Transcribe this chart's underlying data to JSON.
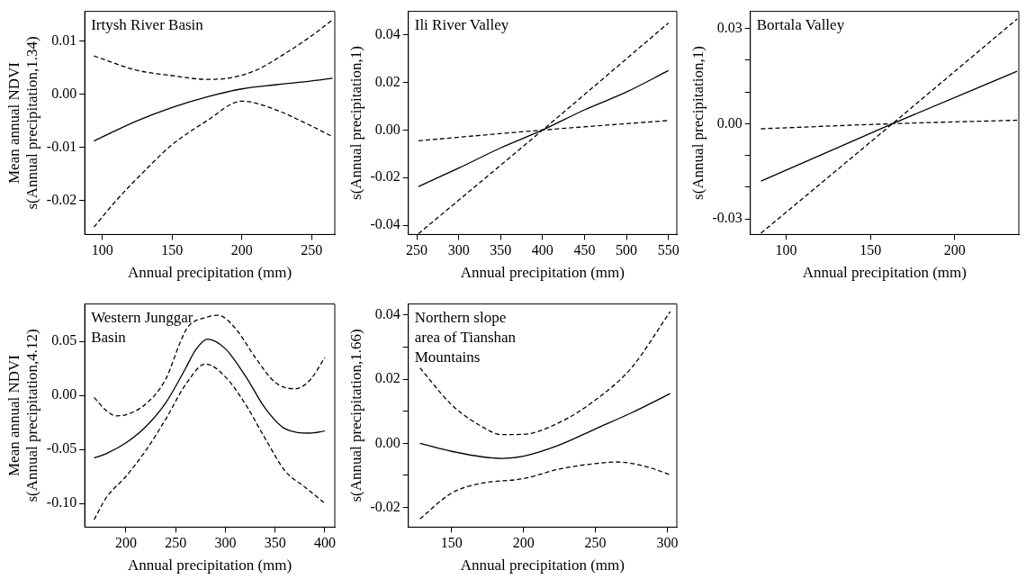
{
  "chart_data": [
    {
      "type": "line",
      "xlabel": "Annual precipitation (mm)",
      "ylabel": "Mean annual NDVI\ns(Annual precipitation,1.34)",
      "annotations": [
        "Irtysh River Basin"
      ],
      "grid": false,
      "legend": false,
      "marker": "none",
      "xlim": [
        87.4,
        266.6
      ],
      "xticks": [
        100,
        150,
        200,
        250
      ],
      "ylim": [
        -0.0264,
        0.0156
      ],
      "yticks": [
        -0.02,
        -0.01,
        {
          "value": 0,
          "label": "0.00"
        },
        0.01
      ],
      "series": [
        {
          "color": "#000000",
          "line_style": "solid",
          "x": [
            94,
            125,
            150,
            175,
            200,
            225,
            250,
            265
          ],
          "values": [
            -0.0088,
            -0.005,
            -0.0025,
            -0.0005,
            0.001,
            0.0018,
            0.0025,
            0.003
          ]
        },
        {
          "color": "#000000",
          "line_style": "dashed",
          "x": [
            94,
            125,
            150,
            175,
            190,
            210,
            230,
            250,
            265
          ],
          "values": [
            0.0072,
            0.0045,
            0.0035,
            0.0028,
            0.003,
            0.0045,
            0.0075,
            0.011,
            0.014
          ]
        },
        {
          "color": "#000000",
          "line_style": "dashed",
          "x": [
            94,
            110,
            130,
            150,
            175,
            200,
            220,
            250,
            265
          ],
          "values": [
            -0.025,
            -0.02,
            -0.0145,
            -0.0095,
            -0.005,
            -0.0013,
            -0.0025,
            -0.006,
            -0.008
          ]
        }
      ]
    },
    {
      "type": "line",
      "xlabel": "Annual precipitation (mm)",
      "ylabel": "s(Annual precipitation,1)",
      "annotations": [
        "Ili River Valley"
      ],
      "grid": false,
      "legend": false,
      "marker": "none",
      "xlim": [
        240,
        560
      ],
      "xticks": [
        250,
        300,
        350,
        400,
        450,
        500,
        550
      ],
      "ylim": [
        -0.0439,
        0.0499
      ],
      "yticks": [
        -0.04,
        -0.02,
        {
          "value": 0,
          "label": "0.00"
        },
        0.02,
        0.04
      ],
      "series": [
        {
          "color": "#000000",
          "line_style": "solid",
          "x": [
            252,
            300,
            350,
            400,
            450,
            500,
            550
          ],
          "values": [
            -0.0237,
            -0.016,
            -0.0075,
            0,
            0.0085,
            0.016,
            0.025
          ]
        },
        {
          "color": "#000000",
          "line_style": "dashed",
          "x": [
            252,
            400,
            550
          ],
          "values": [
            -0.0045,
            0,
            0.004
          ]
        },
        {
          "color": "#000000",
          "line_style": "dashed",
          "x": [
            252,
            400,
            550
          ],
          "values": [
            -0.0436,
            0,
            0.045
          ]
        }
      ]
    },
    {
      "type": "line",
      "xlabel": "Annual precipitation (mm)",
      "ylabel": "s(Annual precipitation,1)",
      "annotations": [
        "Bortala Valley"
      ],
      "grid": false,
      "legend": false,
      "marker": "none",
      "xlim": [
        78.7,
        238
      ],
      "xticks": [
        100,
        150,
        200
      ],
      "ylim": [
        -0.0349,
        0.0354
      ],
      "yticks": [
        -0.03,
        {
          "value": -0.02,
          "label": null
        },
        {
          "value": -0.01,
          "label": null
        },
        {
          "value": 0,
          "label": "0.00"
        },
        {
          "value": 0.01,
          "label": null
        },
        {
          "value": 0.02,
          "label": null
        },
        0.03
      ],
      "series": [
        {
          "color": "#000000",
          "line_style": "solid",
          "x": [
            85,
            163,
            237
          ],
          "values": [
            -0.0181,
            0,
            0.0165
          ]
        },
        {
          "color": "#000000",
          "line_style": "dashed",
          "x": [
            85,
            163,
            237
          ],
          "values": [
            -0.0016,
            0,
            0.0011
          ]
        },
        {
          "color": "#000000",
          "line_style": "dashed",
          "x": [
            85,
            163,
            237
          ],
          "values": [
            -0.0345,
            0,
            0.033
          ]
        }
      ]
    },
    {
      "type": "line",
      "xlabel": "Annual precipitation (mm)",
      "ylabel": "Mean annual NDVI\ns(Annual precipitation,4.12)",
      "annotations": [
        "Western Junggar\nBasin"
      ],
      "grid": false,
      "legend": false,
      "marker": "none",
      "xlim": [
        158.5,
        410
      ],
      "xticks": [
        200,
        250,
        300,
        350,
        400
      ],
      "ylim": [
        -0.122,
        0.0845
      ],
      "yticks": [
        {
          "value": -0.1,
          "label": "-0.10"
        },
        -0.05,
        {
          "value": 0,
          "label": "0.00"
        },
        0.05
      ],
      "series": [
        {
          "color": "#000000",
          "line_style": "solid",
          "x": [
            168,
            180,
            200,
            220,
            240,
            260,
            270,
            282,
            300,
            320,
            340,
            360,
            385,
            400
          ],
          "values": [
            -0.058,
            -0.054,
            -0.044,
            -0.029,
            -0.007,
            0.025,
            0.042,
            0.052,
            0.043,
            0.018,
            -0.012,
            -0.031,
            -0.035,
            -0.033
          ]
        },
        {
          "color": "#000000",
          "line_style": "dashed",
          "x": [
            168,
            180,
            190,
            200,
            220,
            240,
            255,
            262,
            280,
            293,
            310,
            330,
            350,
            370,
            385,
            400
          ],
          "values": [
            -0.002,
            -0.014,
            -0.019,
            -0.018,
            -0.008,
            0.015,
            0.05,
            0.063,
            0.072,
            0.074,
            0.062,
            0.035,
            0.012,
            0.006,
            0.014,
            0.035
          ]
        },
        {
          "color": "#000000",
          "line_style": "dashed",
          "x": [
            168,
            180,
            200,
            220,
            240,
            260,
            280,
            300,
            320,
            340,
            360,
            380,
            400
          ],
          "values": [
            -0.115,
            -0.095,
            -0.075,
            -0.051,
            -0.022,
            0.01,
            0.029,
            0.017,
            -0.008,
            -0.04,
            -0.07,
            -0.085,
            -0.1
          ]
        }
      ]
    },
    {
      "type": "line",
      "xlabel": "Annual precipitation (mm)",
      "ylabel": "s(Annual precipitation,1.66)",
      "annotations": [
        "Northern slope\narea of Tianshan\nMountains"
      ],
      "grid": false,
      "legend": false,
      "marker": "none",
      "xlim": [
        119.9,
        306.6
      ],
      "xticks": [
        150,
        200,
        250,
        300
      ],
      "ylim": [
        -0.0261,
        0.0434
      ],
      "yticks": [
        -0.02,
        {
          "value": -0.01,
          "label": null
        },
        {
          "value": 0,
          "label": "0.00"
        },
        {
          "value": 0.01,
          "label": null
        },
        0.02,
        {
          "value": 0.03,
          "label": null
        },
        0.04
      ],
      "series": [
        {
          "color": "#000000",
          "line_style": "solid",
          "x": [
            128,
            150,
            185,
            200,
            225,
            250,
            275,
            302
          ],
          "values": [
            0,
            -0.0025,
            -0.0047,
            -0.004,
            -0.0005,
            0.0045,
            0.0095,
            0.0155
          ]
        },
        {
          "color": "#000000",
          "line_style": "dashed",
          "x": [
            128,
            150,
            170,
            185,
            200,
            225,
            250,
            275,
            302
          ],
          "values": [
            0.0235,
            0.012,
            0.0055,
            0.0027,
            0.0028,
            0.0065,
            0.0135,
            0.0235,
            0.041
          ]
        },
        {
          "color": "#000000",
          "line_style": "dashed",
          "x": [
            128,
            150,
            170,
            200,
            225,
            250,
            265,
            285,
            302
          ],
          "values": [
            -0.0235,
            -0.0155,
            -0.0125,
            -0.011,
            -0.008,
            -0.0063,
            -0.0058,
            -0.0072,
            -0.0098
          ]
        }
      ]
    }
  ]
}
